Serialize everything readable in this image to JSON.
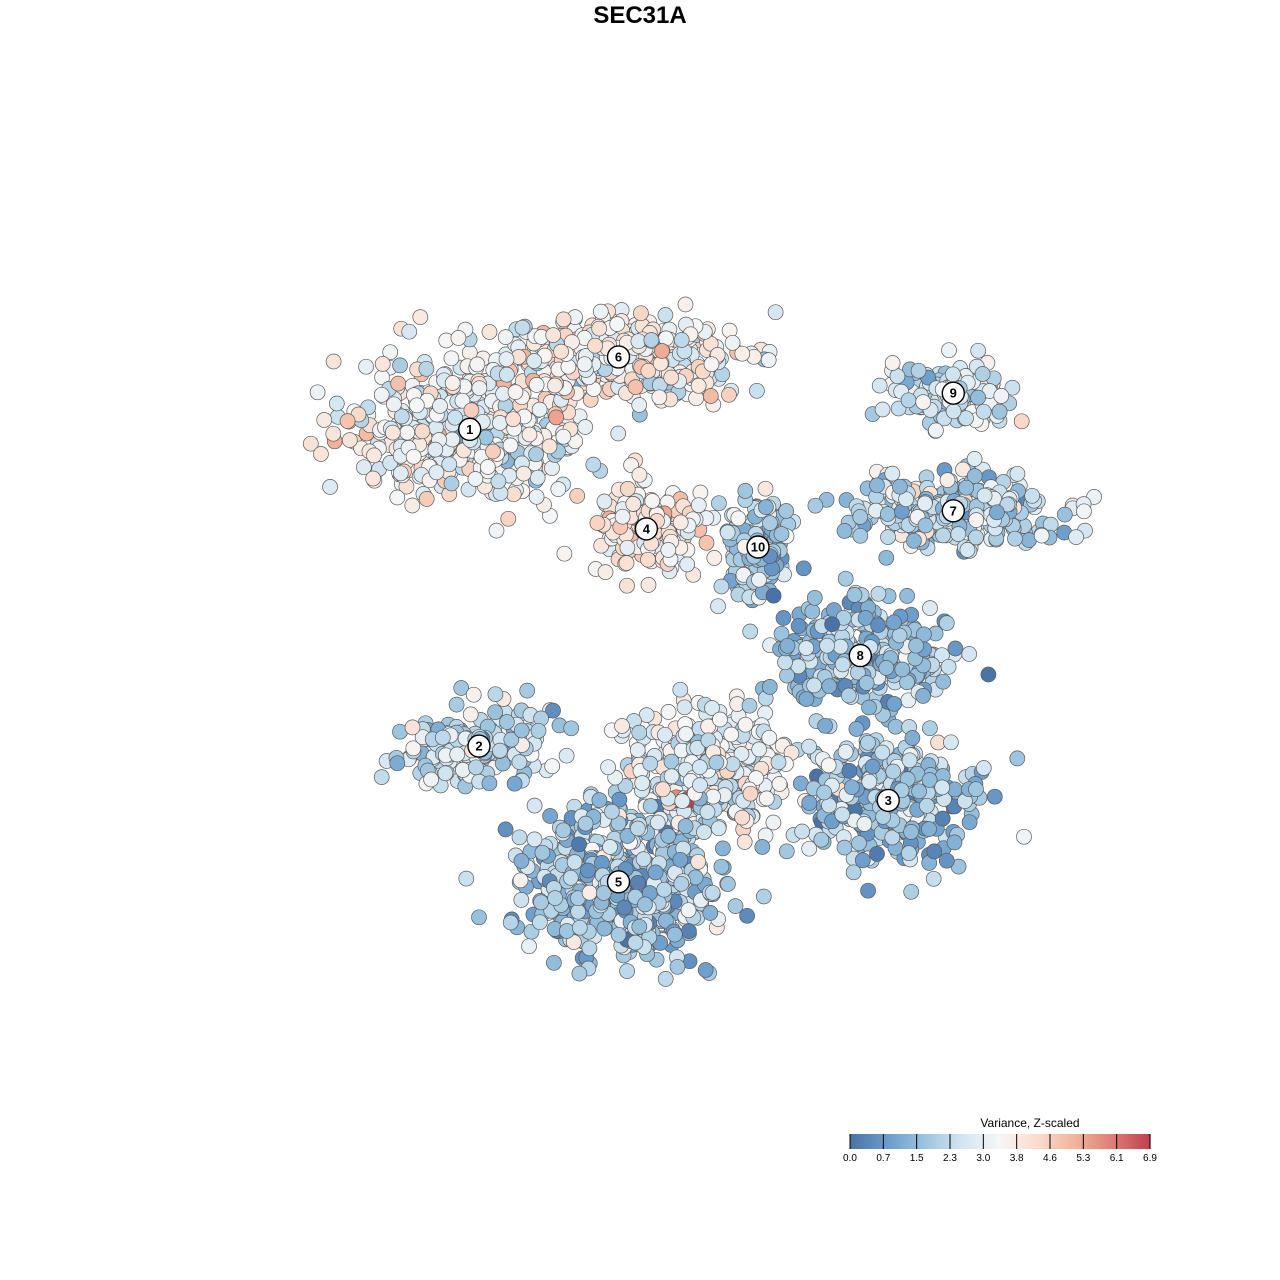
{
  "chart_data": {
    "type": "scatter",
    "title": "SEC31A",
    "xlabel": "",
    "ylabel": "",
    "grid": false,
    "legend_placement": "bottom-right",
    "colorbar": {
      "title": "Variance, Z-scaled",
      "ticks": [
        "0.0",
        "0.7",
        "1.5",
        "2.3",
        "3.0",
        "3.8",
        "4.6",
        "5.3",
        "6.1",
        "6.9"
      ],
      "range": [
        0.0,
        6.9
      ],
      "colors": [
        "#4a72a6",
        "#6a9ccb",
        "#9cc4de",
        "#d3e6f1",
        "#f6f6f6",
        "#f9dccd",
        "#f2b39b",
        "#dd7d73",
        "#c0404f"
      ]
    },
    "clusters": [
      {
        "label": "1",
        "center": [
          0.29,
          0.73
        ],
        "spread": [
          0.11,
          0.07
        ],
        "n": 520,
        "mean": 3.3
      },
      {
        "label": "2",
        "center": [
          0.3,
          0.38
        ],
        "spread": [
          0.07,
          0.04
        ],
        "n": 200,
        "mean": 2.3
      },
      {
        "label": "3",
        "center": [
          0.74,
          0.32
        ],
        "spread": [
          0.08,
          0.06
        ],
        "n": 380,
        "mean": 1.9
      },
      {
        "label": "4",
        "center": [
          0.48,
          0.62
        ],
        "spread": [
          0.05,
          0.05
        ],
        "n": 230,
        "mean": 3.6
      },
      {
        "label": "5",
        "center": [
          0.45,
          0.23
        ],
        "spread": [
          0.09,
          0.07
        ],
        "n": 700,
        "mean": 1.9
      },
      {
        "label": "6",
        "center": [
          0.45,
          0.81
        ],
        "spread": [
          0.12,
          0.04
        ],
        "n": 420,
        "mean": 3.5
      },
      {
        "label": "7",
        "center": [
          0.81,
          0.64
        ],
        "spread": [
          0.1,
          0.035
        ],
        "n": 300,
        "mean": 2.4
      },
      {
        "label": "8",
        "center": [
          0.71,
          0.48
        ],
        "spread": [
          0.08,
          0.05
        ],
        "n": 320,
        "mean": 1.8
      },
      {
        "label": "9",
        "center": [
          0.81,
          0.77
        ],
        "spread": [
          0.06,
          0.03
        ],
        "n": 160,
        "mean": 2.5
      },
      {
        "label": "10",
        "center": [
          0.6,
          0.6
        ],
        "spread": [
          0.03,
          0.05
        ],
        "n": 150,
        "mean": 2.0
      },
      {
        "label": "",
        "center": [
          0.55,
          0.35
        ],
        "spread": [
          0.08,
          0.06
        ],
        "n": 380,
        "mean": 3.0
      }
    ],
    "highlights": [
      {
        "center": [
          0.52,
          0.32
        ],
        "spread": [
          0.01,
          0.006
        ],
        "n": 12,
        "mean": 6.5
      }
    ]
  }
}
